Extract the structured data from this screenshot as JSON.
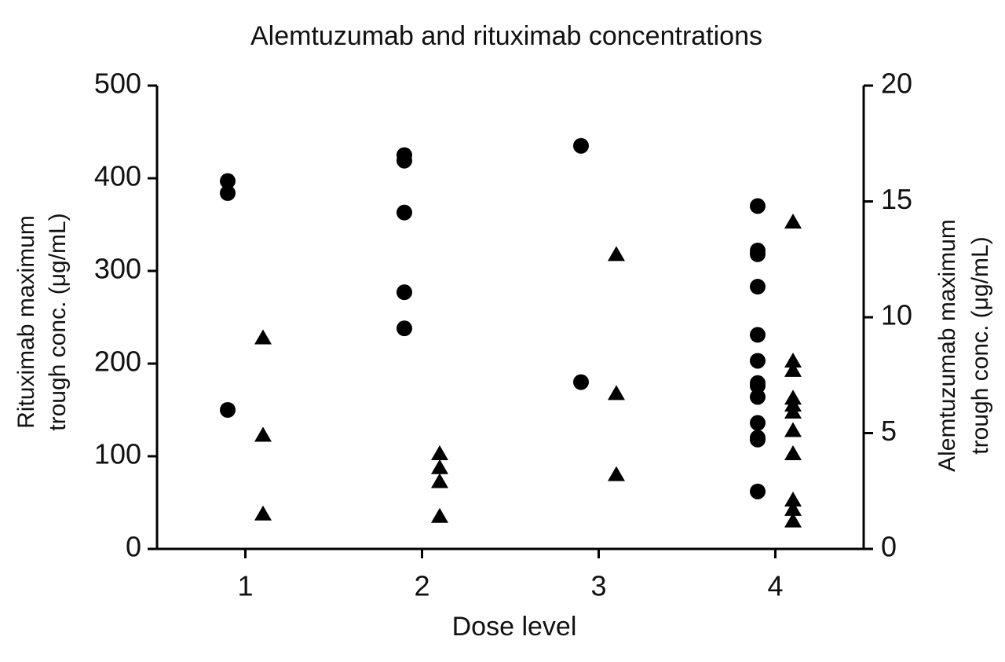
{
  "chart_data": {
    "type": "scatter",
    "title": "Alemtuzumab and rituximab concentrations",
    "xlabel": "Dose level",
    "ylabel": [
      "Rituximab maximum",
      "trough conc. (μg/mL)"
    ],
    "y2label": [
      "Alemtuzumab maximum",
      "trough conc. (μg/mL)"
    ],
    "xlim": [
      0.5,
      4.5
    ],
    "xticks": [
      1,
      2,
      3,
      4
    ],
    "ylim": [
      0,
      500
    ],
    "yticks": [
      0,
      100,
      200,
      300,
      400,
      500
    ],
    "y2lim": [
      0,
      20
    ],
    "y2ticks": [
      0,
      5,
      10,
      15,
      20
    ],
    "series": [
      {
        "marker": "circle",
        "color": "#000000",
        "x": [
          0.9,
          0.9,
          0.9,
          1.9,
          1.9,
          1.9,
          1.9,
          1.9,
          2.9,
          2.9,
          3.9,
          3.9,
          3.9,
          3.9,
          3.9,
          3.9,
          3.9,
          3.9,
          3.9,
          3.9,
          3.9,
          3.9,
          3.9
        ],
        "values": [
          397,
          384,
          150,
          425,
          419,
          363,
          277,
          238,
          435,
          180,
          370,
          322,
          318,
          283,
          231,
          203,
          179,
          176,
          164,
          136,
          120,
          118,
          62
        ]
      },
      {
        "marker": "triangle",
        "color": "#000000",
        "axis": "y2",
        "x": [
          1.1,
          1.1,
          1.1,
          2.1,
          2.1,
          2.1,
          2.1,
          3.1,
          3.1,
          3.1,
          4.1,
          4.1,
          4.1,
          4.1,
          4.1,
          4.1,
          4.1,
          4.1,
          4.1,
          4.1,
          4.1
        ],
        "values": [
          9.1,
          4.9,
          1.5,
          4.1,
          3.5,
          2.9,
          1.4,
          12.7,
          6.7,
          3.2,
          14.1,
          8.1,
          7.7,
          6.5,
          6.2,
          5.9,
          5.1,
          4.1,
          2.1,
          1.7,
          1.2
        ]
      }
    ]
  }
}
